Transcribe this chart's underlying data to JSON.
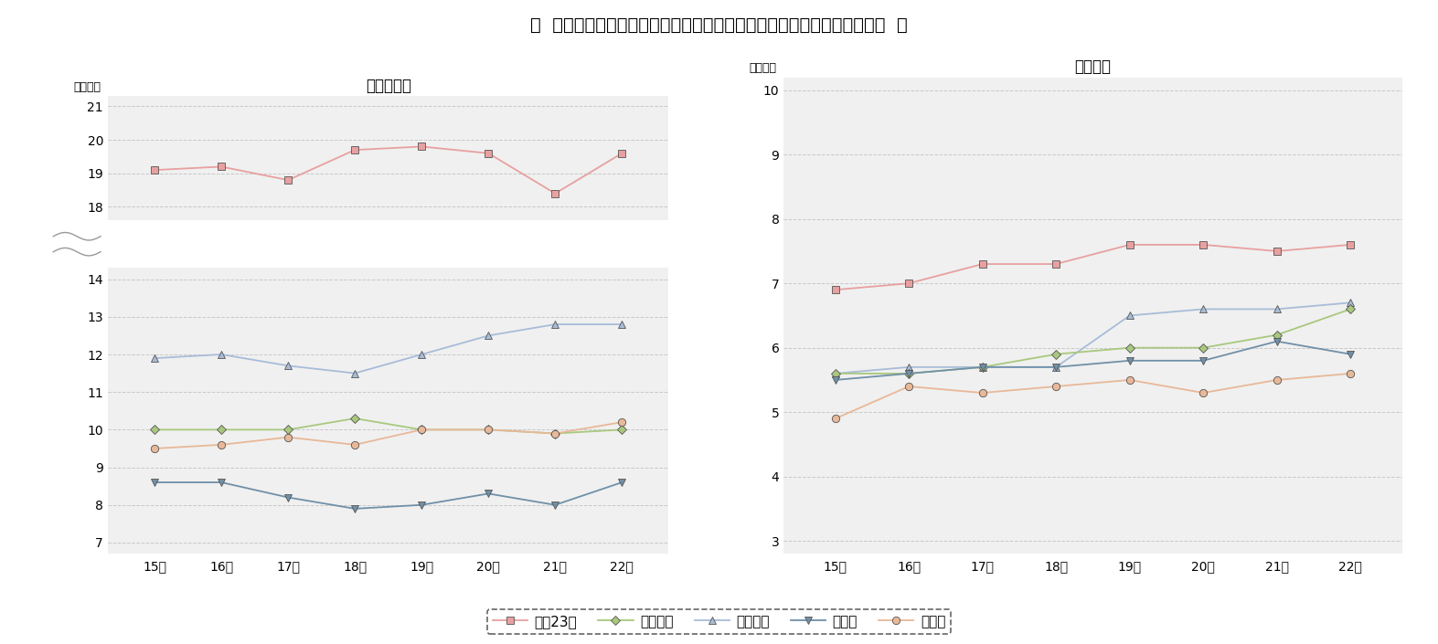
{
  "title": "＜  首都圈の定期借家マンション・アパートにおける平均募集家賎の推移  ＞",
  "years": [
    "15年",
    "16年",
    "17年",
    "18年",
    "19年",
    "20年",
    "21年",
    "22年"
  ],
  "x_vals": [
    15,
    16,
    17,
    18,
    19,
    20,
    21,
    22
  ],
  "mansion_title": "マンション",
  "apart_title": "アパート",
  "ylabel": "（万円）",
  "series": [
    "東京23区",
    "東京都下",
    "神奈川県",
    "埼玉県",
    "千葉県"
  ],
  "colors": [
    "#e8a0a0",
    "#a8c87e",
    "#a8bcd8",
    "#7090a8",
    "#e8b898"
  ],
  "mansion_upper_tokyo23": [
    19.1,
    19.2,
    18.8,
    19.7,
    19.8,
    19.6,
    18.4,
    19.6
  ],
  "mansion_tokyodown": [
    10.0,
    10.0,
    10.0,
    10.3,
    10.0,
    10.0,
    9.9,
    10.0
  ],
  "mansion_kanagawa": [
    11.9,
    12.0,
    11.7,
    11.5,
    12.0,
    12.5,
    12.8,
    12.8
  ],
  "mansion_saitama": [
    8.6,
    8.6,
    8.2,
    7.9,
    8.0,
    8.3,
    8.0,
    8.6
  ],
  "mansion_chiba": [
    9.5,
    9.6,
    9.8,
    9.6,
    10.0,
    10.0,
    9.9,
    10.2
  ],
  "apart_tokyo23": [
    6.9,
    7.0,
    7.3,
    7.3,
    7.6,
    7.6,
    7.5,
    7.6
  ],
  "apart_tokyodown": [
    5.6,
    5.6,
    5.7,
    5.9,
    6.0,
    6.0,
    6.2,
    6.6
  ],
  "apart_kanagawa": [
    5.6,
    5.7,
    5.7,
    5.7,
    6.5,
    6.6,
    6.6,
    6.7
  ],
  "apart_saitama": [
    5.5,
    5.6,
    5.7,
    5.7,
    5.8,
    5.8,
    6.1,
    5.9
  ],
  "apart_chiba": [
    4.9,
    5.4,
    5.3,
    5.4,
    5.5,
    5.3,
    5.5,
    5.6
  ],
  "bg_color": "#ffffff",
  "plot_bg": "#f0f0f0",
  "grid_color": "#c8c8c8",
  "title_fontsize": 14,
  "subtitle_fontsize": 12,
  "tick_fontsize": 10,
  "legend_fontsize": 11,
  "ylabel_fontsize": 9
}
